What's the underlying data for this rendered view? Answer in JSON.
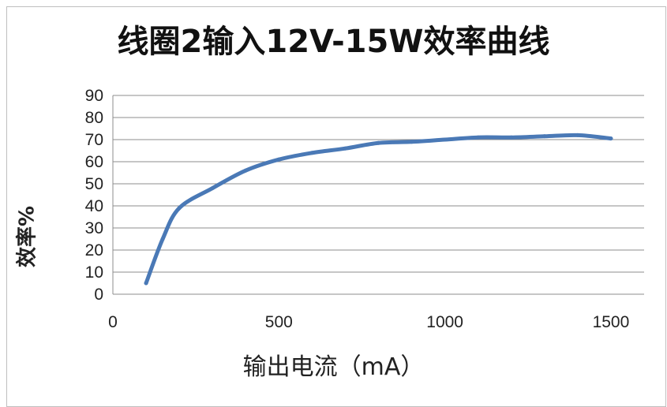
{
  "chart_data": {
    "type": "line",
    "title": "线圈2输入12V-15W效率曲线",
    "xlabel": "输出电流（mA）",
    "ylabel": "效率%",
    "xlim": [
      0,
      1600
    ],
    "ylim": [
      0,
      90
    ],
    "xticks": [
      0,
      500,
      1000,
      1500
    ],
    "yticks": [
      0,
      10,
      20,
      30,
      40,
      50,
      60,
      70,
      80,
      90
    ],
    "grid": true,
    "series": [
      {
        "color": "#4a79b6",
        "x": [
          100,
          150,
          200,
          300,
          400,
          500,
          600,
          700,
          800,
          900,
          1000,
          1100,
          1200,
          1300,
          1400,
          1500
        ],
        "y": [
          5,
          25,
          39,
          48,
          56,
          61,
          64,
          66,
          68.5,
          69,
          70,
          71,
          71,
          71.5,
          72,
          70.5
        ]
      }
    ]
  }
}
